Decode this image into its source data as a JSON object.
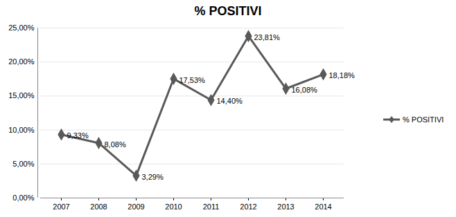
{
  "chart_data": {
    "type": "line",
    "title": "% POSITIVI",
    "categories": [
      "2007",
      "2008",
      "2009",
      "2010",
      "2011",
      "2012",
      "2013",
      "2014"
    ],
    "series": [
      {
        "name": "% POSITIVI",
        "color": "#595959",
        "marker": "diamond",
        "values": [
          9.33,
          8.08,
          3.29,
          17.53,
          14.4,
          23.81,
          16.08,
          18.18
        ],
        "value_labels": [
          "9,33%",
          "8,08%",
          "3,29%",
          "17,53%",
          "14,40%",
          "23,81%",
          "16,08%",
          "18,18%"
        ]
      }
    ],
    "ylim": [
      0,
      25
    ],
    "yticks": [
      {
        "value": 0,
        "label": "0,00%"
      },
      {
        "value": 5,
        "label": "5,00%"
      },
      {
        "value": 10,
        "label": "10,00%"
      },
      {
        "value": 15,
        "label": "15,00%"
      },
      {
        "value": 20,
        "label": "20,00%"
      },
      {
        "value": 25,
        "label": "25,00%"
      }
    ],
    "grid": true,
    "data_labels": true,
    "legend": "right"
  }
}
